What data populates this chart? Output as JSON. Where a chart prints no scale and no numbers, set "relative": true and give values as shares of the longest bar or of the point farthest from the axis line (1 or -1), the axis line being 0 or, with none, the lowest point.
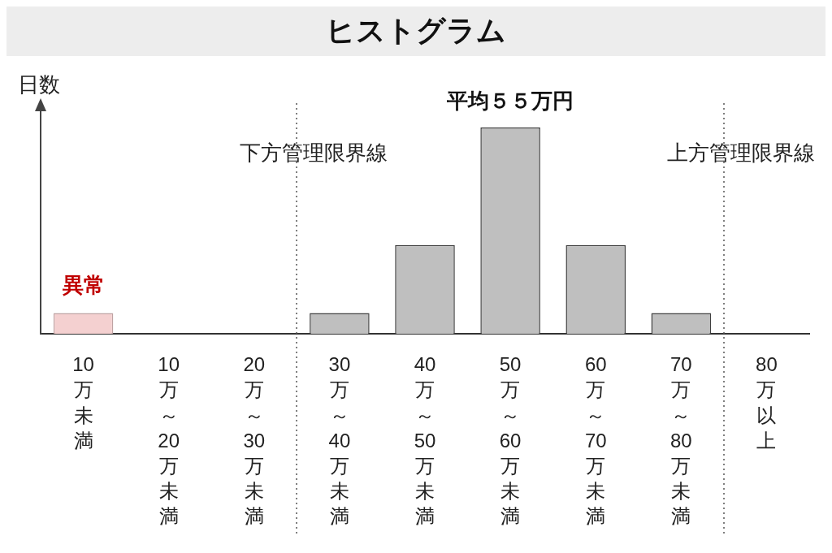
{
  "chart_data": {
    "type": "bar",
    "title": "ヒストグラム",
    "ylabel": "日数",
    "relative": true,
    "categories": [
      "10万未満",
      "10万～20万未満",
      "20万～30万未満",
      "30万～40万未満",
      "40万～50万未満",
      "50万～60万未満",
      "60万～70万未満",
      "70万～80万未満",
      "80万以上"
    ],
    "values": [
      0.1,
      0,
      0,
      0.1,
      0.43,
      1,
      0.43,
      0.1,
      0
    ],
    "colors": [
      "#f4d0d0",
      "#bfbfbf",
      "#bfbfbf",
      "#bfbfbf",
      "#bfbfbf",
      "#bfbfbf",
      "#bfbfbf",
      "#bfbfbf",
      "#bfbfbf"
    ],
    "annotations": [
      "異常",
      "平均５５万円",
      "下方管理限界線",
      "上方管理限界線"
    ],
    "grid": false,
    "legend": false
  }
}
